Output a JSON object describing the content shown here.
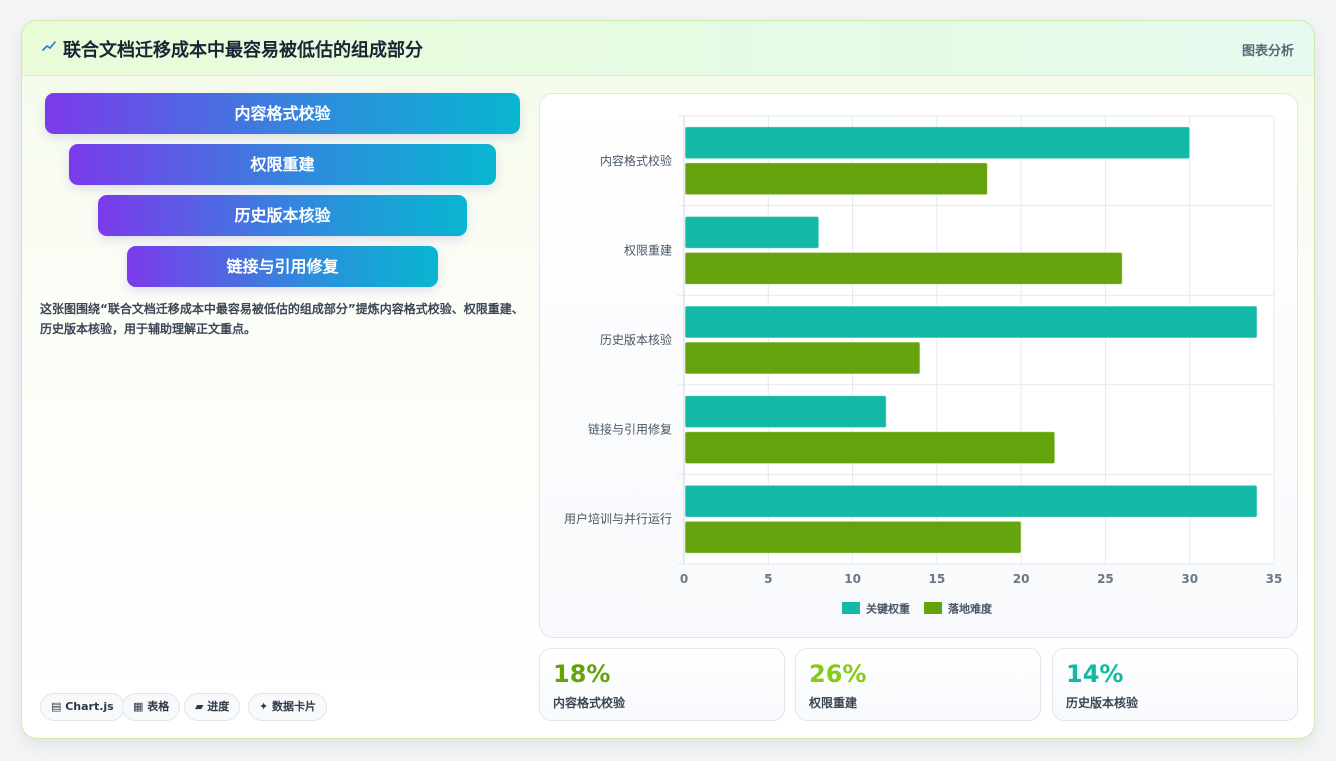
{
  "header": {
    "title": "联合文档迁移成本中最容易被低估的组成部分",
    "right_label": "图表分析"
  },
  "funnel": [
    {
      "label": "内容格式校验"
    },
    {
      "label": "权限重建"
    },
    {
      "label": "历史版本核验"
    },
    {
      "label": "链接与引用修复"
    }
  ],
  "description": "这张图围绕“联合文档迁移成本中最容易被低估的组成部分”提炼内容格式校验、权限重建、历史版本核验，用于辅助理解正文重点。",
  "chips": [
    {
      "label": "▤ Chart.js",
      "icon": "chart-icon"
    },
    {
      "label": "▦ 表格",
      "icon": "table-icon"
    },
    {
      "label": "▰ 进度",
      "icon": "progress-icon"
    },
    {
      "label": "✦ 数据卡片",
      "icon": "sparkle-icon"
    }
  ],
  "stats": [
    {
      "value": "18%",
      "label": "内容格式校验",
      "color": "#65a30d"
    },
    {
      "value": "26%",
      "label": "权限重建",
      "color": "#84cc16"
    },
    {
      "value": "14%",
      "label": "历史版本核验",
      "color": "#14b8a6"
    }
  ],
  "chart_data": {
    "type": "bar",
    "orientation": "horizontal",
    "categories": [
      "内容格式校验",
      "权限重建",
      "历史版本核验",
      "链接与引用修复",
      "用户培训与并行运行"
    ],
    "series": [
      {
        "name": "关键权重",
        "values": [
          30,
          8,
          34,
          12,
          34
        ],
        "color": "#14b8a6"
      },
      {
        "name": "落地难度",
        "values": [
          18,
          26,
          14,
          22,
          20
        ],
        "color": "#65a30d"
      }
    ],
    "xlim": [
      0,
      35
    ],
    "xticks": [
      0,
      5,
      10,
      15,
      20,
      25,
      30,
      35
    ],
    "grid": true,
    "legend": "bottom"
  }
}
